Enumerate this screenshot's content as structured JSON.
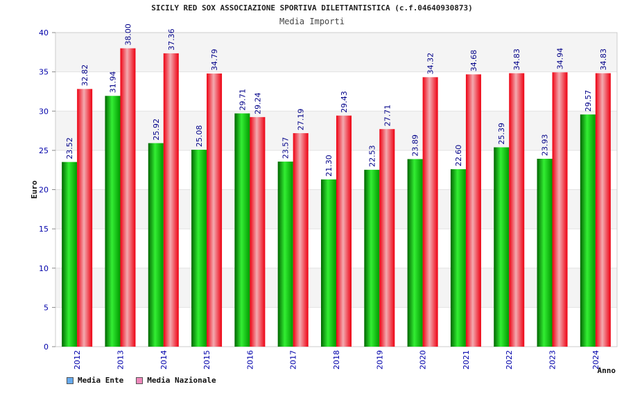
{
  "chart_data": {
    "type": "bar",
    "title": "SICILY RED SOX ASSOCIAZIONE SPORTIVA DILETTANTISTICA (c.f.04640930873)",
    "subtitle": "Media Importi",
    "xlabel": "Anno",
    "ylabel": "Euro",
    "ylim": [
      0,
      40
    ],
    "yticks": [
      0,
      5,
      10,
      15,
      20,
      25,
      30,
      35,
      40
    ],
    "categories": [
      "2012",
      "2013",
      "2014",
      "2015",
      "2016",
      "2017",
      "2018",
      "2019",
      "2020",
      "2021",
      "2022",
      "2023",
      "2024"
    ],
    "series": [
      {
        "name": "Media Ente",
        "color": "#00aa00",
        "values": [
          23.52,
          31.94,
          25.92,
          25.08,
          29.71,
          23.57,
          21.3,
          22.53,
          23.89,
          22.6,
          25.39,
          23.93,
          29.57
        ],
        "labels": [
          "23.52",
          "31.94",
          "25.92",
          "25.08",
          "29.71",
          "23.57",
          "21.30",
          "22.53",
          "23.89",
          "22.60",
          "25.39",
          "23.93",
          "29.57"
        ]
      },
      {
        "name": "Media Nazionale",
        "color": "#ee1122",
        "values": [
          32.82,
          38.0,
          37.36,
          34.79,
          29.24,
          27.19,
          29.43,
          27.71,
          34.32,
          34.68,
          34.83,
          34.94,
          34.83
        ],
        "labels": [
          "32.82",
          "38.00",
          "37.36",
          "34.79",
          "29.24",
          "27.19",
          "29.43",
          "27.71",
          "34.32",
          "34.68",
          "34.83",
          "34.94",
          "34.83"
        ]
      }
    ],
    "legend": [
      {
        "label": "Media Ente",
        "swatch_color": "#66aaee"
      },
      {
        "label": "Media Nazionale",
        "swatch_color": "#ee88bb"
      }
    ],
    "legend_position": "bottom-left",
    "grid": true
  }
}
